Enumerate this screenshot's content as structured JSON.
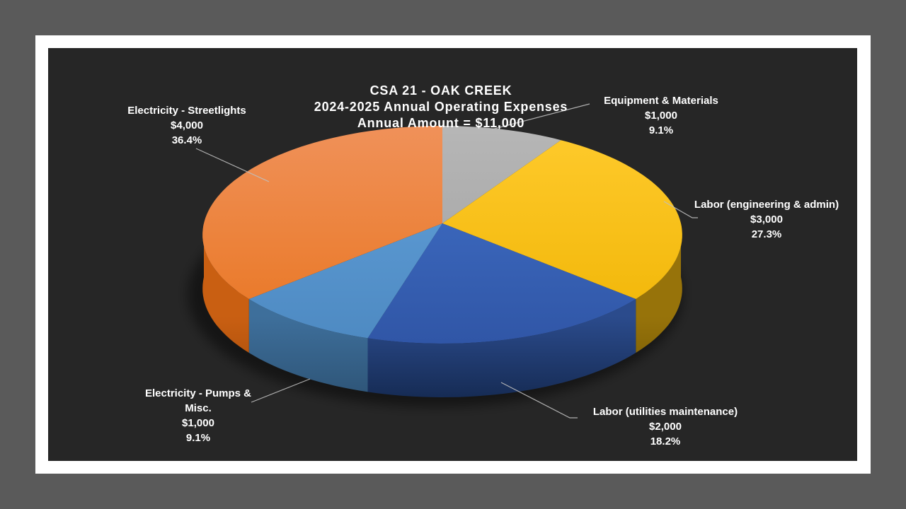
{
  "page": {
    "desktop_color": "#5A5A5A",
    "slide_color": "#FFFFFF",
    "plot_area_color": "#262626",
    "text_color": "#FFFFFF",
    "leader_line_color": "#BFBFBF"
  },
  "chart_data": {
    "type": "pie",
    "style": "3d",
    "title": "CSA 21 - OAK CREEK",
    "subtitle": "2024-2025 Annual Operating Expenses",
    "total_label": "Annual Amount = $11,000",
    "total_value": 11000,
    "units": "USD",
    "start_angle_deg": 0,
    "direction": "clockwise",
    "legend": "none",
    "data_labels": "category, value, percent in external callouts with leader lines",
    "slices": [
      {
        "label": "Equipment & Materials",
        "amount": "$1,000",
        "value": 1000,
        "pct": "9.1%",
        "percent": 9.1,
        "color_top": "#9E9E9E",
        "color_top_light": "#B7B7B7",
        "color_side": "#7B7B7B",
        "color_side_dark": "#5F5F5F"
      },
      {
        "label": "Labor (engineering & admin)",
        "amount": "$3,000",
        "value": 3000,
        "pct": "27.3%",
        "percent": 27.3,
        "color_top": "#EFB301",
        "color_top_light": "#FFCB2E",
        "color_side": "#97730A",
        "color_side_dark": "#6F5604"
      },
      {
        "label": "Labor (utilities maintenance)",
        "amount": "$2,000",
        "value": 2000,
        "pct": "18.2%",
        "percent": 18.2,
        "color_top": "#2F54A4",
        "color_top_light": "#4273CB",
        "color_side": "#2B4B8C",
        "color_side_dark": "#152A52"
      },
      {
        "label": "Electricity - Pumps & Misc.",
        "amount": "$1,000",
        "value": 1000,
        "pct": "9.1%",
        "percent": 9.1,
        "color_top": "#4C88C0",
        "color_top_light": "#63A2DC",
        "color_side": "#3E6F9B",
        "color_side_dark": "#2D5375"
      },
      {
        "label": "Electricity - Streetlights",
        "amount": "$4,000",
        "value": 4000,
        "pct": "36.4%",
        "percent": 36.4,
        "color_top": "#E8731C",
        "color_top_light": "#F0925B",
        "color_side": "#C95F12",
        "color_side_dark": "#A04A0A"
      }
    ]
  }
}
